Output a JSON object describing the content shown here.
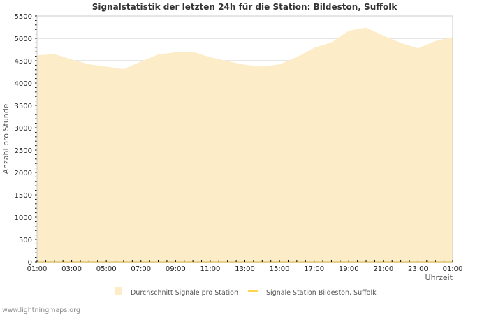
{
  "chart_data": {
    "type": "area",
    "title": "Signalstatistik der letzten 24h für die Station: Bildeston, Suffolk",
    "xlabel": "Uhrzeit",
    "ylabel": "Anzahl pro Stunde",
    "ylim": [
      0,
      5500
    ],
    "yticks": [
      0,
      500,
      1000,
      1500,
      2000,
      2500,
      3000,
      3500,
      4000,
      4500,
      5000,
      5500
    ],
    "xtick_labels": [
      "01:00",
      "03:00",
      "05:00",
      "07:00",
      "09:00",
      "11:00",
      "13:00",
      "15:00",
      "17:00",
      "19:00",
      "21:00",
      "23:00",
      "01:00"
    ],
    "x": [
      "01:00",
      "02:00",
      "03:00",
      "04:00",
      "05:00",
      "06:00",
      "07:00",
      "08:00",
      "09:00",
      "10:00",
      "11:00",
      "12:00",
      "13:00",
      "14:00",
      "15:00",
      "16:00",
      "17:00",
      "18:00",
      "19:00",
      "20:00",
      "21:00",
      "22:00",
      "23:00",
      "00:00",
      "01:00"
    ],
    "series": [
      {
        "name": "Durchschnitt Signale pro Station",
        "color": "#fdecc8",
        "values": [
          4620,
          4650,
          4530,
          4420,
          4370,
          4310,
          4480,
          4640,
          4690,
          4700,
          4580,
          4490,
          4410,
          4370,
          4420,
          4580,
          4790,
          4910,
          5170,
          5240,
          5060,
          4900,
          4780,
          4940,
          5030
        ]
      },
      {
        "name": "Signale Station Bildeston, Suffolk",
        "color": "#ffd34d",
        "values": [
          0,
          0,
          0,
          0,
          0,
          0,
          0,
          0,
          0,
          0,
          0,
          0,
          0,
          0,
          0,
          0,
          0,
          0,
          0,
          0,
          0,
          0,
          0,
          0,
          0
        ]
      }
    ],
    "grid": true,
    "legend": "bottom"
  },
  "watermark": "www.lightningmaps.org"
}
